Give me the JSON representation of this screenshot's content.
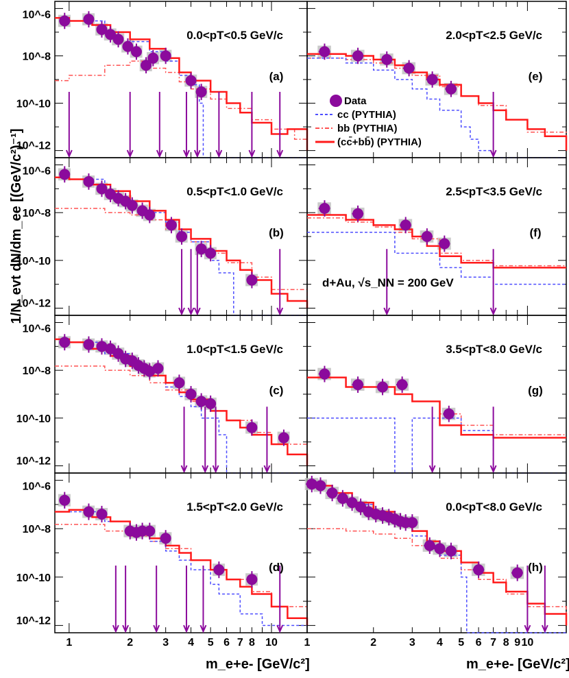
{
  "figure": {
    "ylabel": "1/N_evt dN/dm_ee [(GeV/c²)⁻¹]",
    "xlabel_left": "m_e+e- [GeV/c²]",
    "xlabel_right": "m_e+e- [GeV/c²]",
    "system_label": "d+Au, √s_NN = 200 GeV",
    "legend": {
      "data": "Data",
      "cc": "cc (PYTHIA)",
      "bb": "bb (PYTHIA)",
      "sum": "(cc̄+bb̄) (PYTHIA)"
    },
    "colors": {
      "data": "#8b0a9c",
      "sum": "#ff1a1a",
      "cc": "#4d4dff",
      "bb": "#ff5050",
      "syst": "#bdbdbd"
    }
  },
  "chart_data": [
    {
      "type": "scatter",
      "panel": "(a)",
      "label": "0.0<pT<0.5 GeV/c",
      "log_y": true,
      "xlim": [
        0.85,
        15
      ],
      "ylim": [
        5e-13,
        2e-06
      ],
      "yticks": [
        "10^-6",
        "10^-8",
        "10^-10",
        "10^-12"
      ],
      "data": {
        "x": [
          0.95,
          1.25,
          1.45,
          1.6,
          1.75,
          1.95,
          2.15,
          2.4,
          2.6,
          3.0,
          4.0,
          4.5
        ],
        "y": [
          3e-07,
          3.5e-07,
          1.3e-07,
          8e-08,
          5e-08,
          2.5e-08,
          1.5e-08,
          4e-09,
          8e-09,
          1e-08,
          9e-10,
          3e-10
        ]
      },
      "upper_limits": [
        1.0,
        2.0,
        2.8,
        3.8,
        4.3,
        5.5,
        8.0,
        11.0
      ],
      "sum": {
        "x": [
          0.85,
          1.0,
          1.3,
          1.6,
          2.0,
          2.5,
          3.0,
          3.5,
          4.0,
          5.0,
          6.0,
          7.0,
          8.0,
          10.0,
          12.0,
          15.0
        ],
        "y": [
          4e-07,
          3e-07,
          2e-07,
          1e-07,
          5e-08,
          2e-08,
          8e-09,
          2e-09,
          9e-10,
          3e-10,
          1e-10,
          4e-11,
          1.5e-11,
          5e-12,
          8e-12,
          1e-12
        ]
      },
      "cc": {
        "x": [
          0.85,
          1.0,
          1.5,
          2.0,
          2.5,
          3.0,
          3.5,
          4.0,
          4.4,
          4.6
        ],
        "y": [
          4e-07,
          3e-07,
          1e-07,
          4e-08,
          1.5e-08,
          6e-09,
          1.5e-09,
          6e-10,
          1e-10,
          5e-13
        ]
      },
      "bb": {
        "x": [
          0.85,
          1.0,
          1.5,
          2.0,
          2.5,
          3.0,
          3.5,
          4.0,
          5.0,
          6.0,
          8.0,
          10.0,
          13.0,
          15.0
        ],
        "y": [
          9e-10,
          1.5e-09,
          4e-09,
          6e-09,
          3e-09,
          2e-09,
          8e-10,
          4e-10,
          1.5e-10,
          6e-11,
          2e-11,
          8e-12,
          3e-12,
          1e-12
        ]
      }
    },
    {
      "type": "scatter",
      "panel": "(b)",
      "label": "0.5<pT<1.0 GeV/c",
      "log_y": true,
      "xlim": [
        0.85,
        15
      ],
      "ylim": [
        5e-13,
        2e-06
      ],
      "yticks": [
        "10^-6",
        "10^-8",
        "10^-10",
        "10^-12"
      ],
      "data": {
        "x": [
          0.95,
          1.25,
          1.45,
          1.6,
          1.75,
          1.9,
          2.05,
          2.3,
          2.5,
          3.2,
          3.6,
          4.5,
          5.0,
          8.0
        ],
        "y": [
          4e-07,
          2e-07,
          1e-07,
          6e-08,
          4e-08,
          3e-08,
          2e-08,
          1.2e-08,
          8e-09,
          3e-09,
          1e-09,
          3e-10,
          2e-10,
          1.5e-11
        ]
      },
      "upper_limits": [
        3.6,
        4.0,
        4.3,
        11.0
      ],
      "sum": {
        "x": [
          0.85,
          1.0,
          1.3,
          1.6,
          2.0,
          2.5,
          3.0,
          3.5,
          4.0,
          5.0,
          6.0,
          7.0,
          8.0,
          10.0,
          12.0,
          15.0
        ],
        "y": [
          3e-07,
          2.5e-07,
          1.5e-07,
          8e-08,
          3e-08,
          1.2e-08,
          5e-09,
          2e-09,
          8e-10,
          2.5e-10,
          1e-10,
          4e-11,
          1.5e-11,
          4e-12,
          2e-12,
          1e-12
        ]
      },
      "cc": {
        "x": [
          0.85,
          1.0,
          1.5,
          2.0,
          2.5,
          3.0,
          3.5,
          4.0,
          5.0,
          5.5,
          6.5
        ],
        "y": [
          3e-07,
          2.5e-07,
          8e-08,
          3e-08,
          1e-08,
          4e-09,
          1.5e-09,
          6e-10,
          1e-10,
          3e-11,
          5e-13
        ]
      },
      "bb": {
        "x": [
          0.85,
          1.0,
          1.5,
          2.0,
          2.5,
          3.0,
          4.0,
          5.0,
          6.0,
          8.0,
          10.0,
          15.0
        ],
        "y": [
          1.5e-08,
          1.5e-08,
          1e-08,
          8e-09,
          5e-09,
          2e-09,
          6e-10,
          2e-10,
          8e-11,
          2e-11,
          6e-12,
          1e-12
        ]
      }
    },
    {
      "type": "scatter",
      "panel": "(c)",
      "label": "1.0<pT<1.5 GeV/c",
      "log_y": true,
      "xlim": [
        0.85,
        15
      ],
      "ylim": [
        5e-13,
        2e-06
      ],
      "yticks": [
        "10^-6",
        "10^-8",
        "10^-10",
        "10^-12"
      ],
      "data": {
        "x": [
          0.95,
          1.25,
          1.45,
          1.6,
          1.75,
          1.9,
          2.05,
          2.2,
          2.35,
          2.5,
          2.75,
          3.5,
          4.0,
          4.5,
          5.0,
          8.0,
          11.5
        ],
        "y": [
          1.5e-07,
          1.2e-07,
          1e-07,
          8e-08,
          5e-08,
          3e-08,
          2.5e-08,
          1.6e-08,
          1.2e-08,
          9e-09,
          1.2e-08,
          3e-09,
          1e-09,
          5e-10,
          4e-10,
          4e-11,
          1.5e-11
        ]
      },
      "upper_limits": [
        3.7,
        4.7,
        5.3,
        9.5
      ],
      "sum": {
        "x": [
          0.85,
          1.0,
          1.3,
          1.6,
          2.0,
          2.5,
          3.0,
          3.5,
          4.0,
          5.0,
          6.0,
          7.0,
          8.0,
          10.0,
          12.0,
          15.0
        ],
        "y": [
          2e-07,
          1.5e-07,
          8e-08,
          4e-08,
          1.5e-08,
          6e-09,
          3e-09,
          1.2e-09,
          6e-10,
          2e-10,
          8e-11,
          4e-11,
          2e-11,
          8e-12,
          3e-12,
          1e-12
        ]
      },
      "cc": {
        "x": [
          0.85,
          1.0,
          1.5,
          2.0,
          2.5,
          3.0,
          3.5,
          4.0,
          4.5,
          5.5,
          6.0
        ],
        "y": [
          2e-07,
          1.5e-07,
          5e-08,
          1.5e-08,
          6e-09,
          2e-09,
          8e-10,
          3e-10,
          1e-10,
          2e-11,
          5e-13
        ]
      },
      "bb": {
        "x": [
          0.85,
          1.0,
          1.5,
          2.0,
          2.5,
          3.0,
          4.0,
          5.0,
          6.0,
          8.0,
          10.0,
          15.0
        ],
        "y": [
          1.5e-08,
          1.5e-08,
          1e-08,
          6e-09,
          3e-09,
          1.5e-09,
          5e-10,
          2e-10,
          8e-11,
          2.5e-11,
          8e-12,
          1e-12
        ]
      }
    },
    {
      "type": "scatter",
      "panel": "(d)",
      "label": "1.5<pT<2.0 GeV/c",
      "log_y": true,
      "xlim": [
        0.85,
        15
      ],
      "ylim": [
        5e-13,
        2e-06
      ],
      "yticks": [
        "10^-6",
        "10^-8",
        "10^-10",
        "10^-12"
      ],
      "data": {
        "x": [
          0.95,
          1.25,
          1.45,
          2.0,
          2.15,
          2.3,
          2.5,
          3.0,
          5.5,
          8.0
        ],
        "y": [
          1.5e-07,
          5e-08,
          4e-08,
          8e-09,
          7e-09,
          8e-09,
          8e-09,
          4e-09,
          2e-10,
          8e-11
        ]
      },
      "upper_limits": [
        1.7,
        1.9,
        2.7,
        3.8,
        4.6,
        11.0
      ],
      "sum": {
        "x": [
          0.85,
          1.0,
          1.3,
          1.6,
          2.0,
          2.5,
          3.0,
          3.5,
          4.0,
          5.0,
          6.0,
          7.0,
          8.0,
          10.0,
          12.0,
          15.0
        ],
        "y": [
          5e-08,
          6e-08,
          3e-08,
          2e-08,
          8e-09,
          4e-09,
          2e-09,
          1e-09,
          5e-10,
          2e-10,
          8e-11,
          4e-11,
          2e-11,
          6e-12,
          2e-12,
          1e-12
        ]
      },
      "cc": {
        "x": [
          0.85,
          1.0,
          1.5,
          2.0,
          2.5,
          3.0,
          3.5,
          4.0,
          5.0,
          5.5,
          7.0,
          9.0,
          15.0
        ],
        "y": [
          5e-08,
          5e-08,
          2e-08,
          8e-09,
          3e-09,
          1.2e-09,
          5e-10,
          2e-10,
          5e-11,
          2e-11,
          3e-12,
          1e-12,
          1e-12
        ]
      },
      "bb": {
        "x": [
          0.85,
          1.0,
          1.5,
          2.0,
          2.5,
          3.0,
          4.0,
          5.0,
          6.0,
          8.0,
          10.0,
          15.0
        ],
        "y": [
          1.5e-08,
          1.5e-08,
          8e-09,
          5e-09,
          3e-09,
          1.5e-09,
          5e-10,
          2e-10,
          8e-11,
          2.5e-11,
          6e-12,
          1e-12
        ]
      }
    },
    {
      "type": "scatter",
      "panel": "(e)",
      "label": "2.0<pT<2.5 GeV/c",
      "log_y": true,
      "xlim": [
        1.0,
        15
      ],
      "ylim": [
        5e-13,
        2e-06
      ],
      "data": {
        "x": [
          1.2,
          1.7,
          2.3,
          2.9,
          3.7,
          4.5
        ],
        "y": [
          1.5e-08,
          1e-08,
          7e-09,
          3e-09,
          1e-09,
          4e-10
        ]
      },
      "upper_limits": [
        7.0
      ],
      "sum": {
        "x": [
          1.0,
          1.5,
          2.0,
          2.5,
          3.0,
          3.5,
          4.0,
          5.0,
          6.0,
          7.0,
          8.0,
          10.0,
          12.0,
          15.0
        ],
        "y": [
          1.2e-08,
          1e-08,
          7e-09,
          4e-09,
          2e-09,
          1e-09,
          6e-10,
          2e-10,
          1e-10,
          5e-11,
          2e-11,
          8e-12,
          4e-12,
          1e-12
        ]
      },
      "cc": {
        "x": [
          1.0,
          1.5,
          2.0,
          2.5,
          3.0,
          3.5,
          4.0,
          5.0,
          5.5,
          6.0,
          7.0
        ],
        "y": [
          8e-09,
          5e-09,
          2.5e-09,
          1e-09,
          4e-10,
          1.5e-10,
          5e-11,
          1e-11,
          3e-12,
          1e-12,
          5e-13
        ]
      },
      "bb": {
        "x": [
          1.0,
          1.5,
          2.0,
          2.5,
          3.0,
          4.0,
          5.0,
          6.0,
          8.0,
          10.0,
          15.0
        ],
        "y": [
          8e-09,
          7e-09,
          5e-09,
          3e-09,
          1.5e-09,
          5e-10,
          2e-10,
          8e-11,
          2e-11,
          6e-12,
          1e-12
        ]
      }
    },
    {
      "type": "scatter",
      "panel": "(f)",
      "label": "2.5<pT<3.5 GeV/c",
      "log_y": true,
      "xlim": [
        1.0,
        15
      ],
      "ylim": [
        5e-13,
        2e-06
      ],
      "data": {
        "x": [
          1.2,
          1.7,
          2.8,
          3.5,
          4.2
        ],
        "y": [
          1.5e-08,
          9e-09,
          3e-09,
          1e-09,
          5e-10
        ]
      },
      "upper_limits": [
        2.3,
        7.0
      ],
      "sum": {
        "x": [
          1.0,
          1.5,
          2.0,
          2.5,
          3.0,
          3.5,
          4.0,
          5.0,
          7.0,
          10.0
        ],
        "y": [
          8e-09,
          5e-09,
          3e-09,
          2e-09,
          1e-09,
          4e-10,
          1.5e-10,
          8e-11,
          5e-11,
          5e-11
        ]
      },
      "cc": {
        "x": [
          1.0,
          1.5,
          2.0,
          2.5,
          3.0,
          4.0,
          5.0,
          7.0,
          10.0
        ],
        "y": [
          1.5e-09,
          1.5e-09,
          1.5e-09,
          2e-10,
          2e-10,
          5e-11,
          2e-11,
          1e-11,
          1e-11
        ]
      },
      "bb": {
        "x": [
          1.0,
          1.5,
          2.0,
          2.5,
          3.0,
          4.0,
          5.0,
          7.0,
          10.0
        ],
        "y": [
          6e-09,
          4e-09,
          2.5e-09,
          1.5e-09,
          8e-10,
          2e-10,
          1e-10,
          6e-11,
          6e-11
        ]
      }
    },
    {
      "type": "scatter",
      "panel": "(g)",
      "label": "3.5<pT<8.0 GeV/c",
      "log_y": true,
      "xlim": [
        1.0,
        15
      ],
      "ylim": [
        5e-13,
        2e-06
      ],
      "data": {
        "x": [
          1.2,
          1.7,
          2.2,
          2.7,
          4.4
        ],
        "y": [
          7e-09,
          2.5e-09,
          2e-09,
          2.5e-09,
          1.5e-10
        ]
      },
      "upper_limits": [
        3.7,
        7.0
      ],
      "sum": {
        "x": [
          1.0,
          1.5,
          2.0,
          2.5,
          3.0,
          3.5,
          4.0,
          5.0,
          7.0,
          10.0
        ],
        "y": [
          5e-09,
          2e-09,
          2e-09,
          1e-09,
          5e-10,
          5e-10,
          5e-11,
          2e-11,
          1.5e-11,
          1.5e-11
        ]
      },
      "cc": {
        "x": [
          1.0,
          1.5,
          2.0,
          2.5,
          3.0,
          4.0,
          5.0,
          7.0,
          10.0
        ],
        "y": [
          1e-10,
          1e-10,
          1e-10,
          5e-13,
          1e-10,
          1e-10,
          3e-11,
          5e-13,
          5e-13
        ]
      },
      "bb": {
        "x": [
          1.0,
          1.5,
          2.0,
          2.5,
          3.0,
          4.0,
          5.0,
          7.0,
          10.0
        ],
        "y": [
          5e-09,
          2e-09,
          2e-09,
          1e-09,
          5e-10,
          1.5e-10,
          5e-11,
          2e-11,
          2e-11
        ]
      }
    },
    {
      "type": "scatter",
      "panel": "(h)",
      "label": "0.0<pT<8.0 GeV/c",
      "log_y": true,
      "xlim": [
        1.0,
        15
      ],
      "ylim": [
        5e-13,
        2e-06
      ],
      "data": {
        "x": [
          1.05,
          1.15,
          1.3,
          1.45,
          1.6,
          1.75,
          1.9,
          2.05,
          2.2,
          2.35,
          2.5,
          2.65,
          2.8,
          3.0,
          3.6,
          4.0,
          4.5,
          6.0,
          9.0
        ],
        "y": [
          7e-07,
          6e-07,
          3e-07,
          1.8e-07,
          1.2e-07,
          8e-08,
          5e-08,
          4e-08,
          3.5e-08,
          3e-08,
          2.5e-08,
          2e-08,
          1.8e-08,
          1.8e-08,
          2e-09,
          1.5e-09,
          1.2e-09,
          2e-10,
          1.5e-10
        ]
      },
      "upper_limits": [
        10.0,
        12.0
      ],
      "sum": {
        "x": [
          1.0,
          1.3,
          1.6,
          2.0,
          2.5,
          3.0,
          3.5,
          4.0,
          5.0,
          6.0,
          7.0,
          8.0,
          10.0,
          12.0,
          15.0
        ],
        "y": [
          6e-07,
          3e-07,
          1.2e-07,
          5e-08,
          2e-08,
          8e-09,
          3e-09,
          1.2e-09,
          4e-10,
          1.5e-10,
          6e-11,
          2.5e-11,
          8e-12,
          3e-12,
          1e-12
        ]
      },
      "cc": {
        "x": [
          1.0,
          1.3,
          1.6,
          2.0,
          2.5,
          3.0,
          3.5,
          4.0,
          5.0,
          5.3,
          6.0,
          7.0,
          9.0
        ],
        "y": [
          6e-07,
          3e-07,
          1e-07,
          4e-08,
          1.5e-08,
          5e-09,
          2e-09,
          8e-10,
          1e-10,
          5e-13,
          5e-13,
          5e-13,
          5e-13
        ]
      },
      "bb": {
        "x": [
          1.0,
          1.5,
          2.0,
          2.5,
          3.0,
          4.0,
          5.0,
          6.0,
          8.0,
          10.0,
          15.0
        ],
        "y": [
          1e-08,
          8e-09,
          6e-09,
          4e-09,
          2e-09,
          6e-10,
          2e-10,
          8e-11,
          2e-11,
          6e-12,
          1e-12
        ]
      }
    }
  ]
}
